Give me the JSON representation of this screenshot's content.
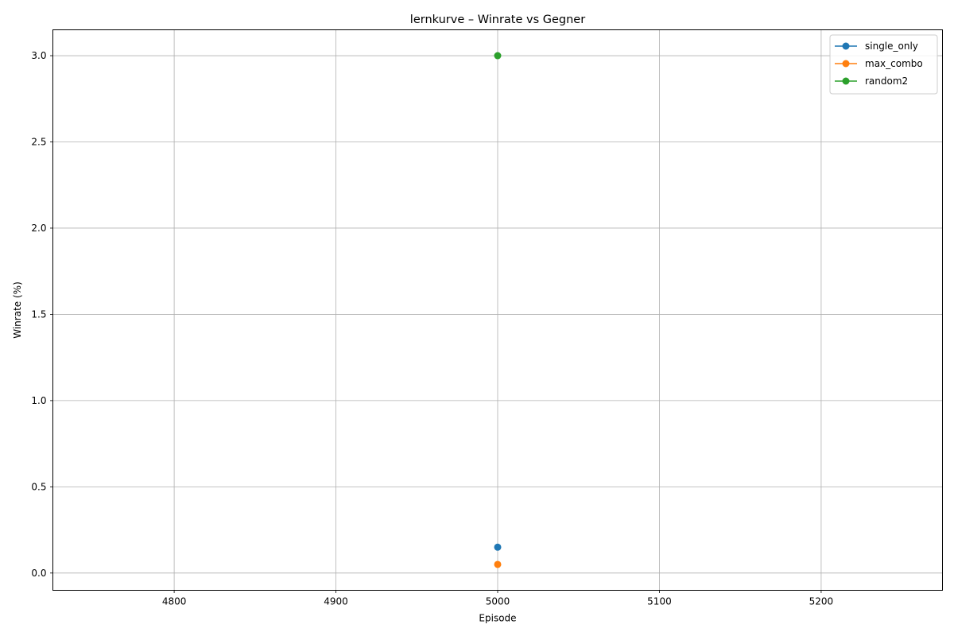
{
  "chart_data": {
    "type": "line",
    "title": "lernkurve – Winrate vs Gegner",
    "xlabel": "Episode",
    "ylabel": "Winrate (%)",
    "xlim": [
      4725,
      5275
    ],
    "ylim": [
      -0.1,
      3.15
    ],
    "x_ticks": [
      4800,
      4900,
      5000,
      5100,
      5200
    ],
    "y_ticks": [
      0.0,
      0.5,
      1.0,
      1.5,
      2.0,
      2.5,
      3.0
    ],
    "x_tick_labels": [
      "4800",
      "4900",
      "5000",
      "5100",
      "5200"
    ],
    "y_tick_labels": [
      "0.0",
      "0.5",
      "1.0",
      "1.5",
      "2.0",
      "2.5",
      "3.0"
    ],
    "grid": true,
    "legend_position": "top-right",
    "series": [
      {
        "name": "single_only",
        "color": "#1f77b4",
        "marker": "circle",
        "x": [
          5000
        ],
        "y": [
          0.15
        ]
      },
      {
        "name": "max_combo",
        "color": "#ff7f0e",
        "marker": "circle",
        "x": [
          5000
        ],
        "y": [
          0.05
        ]
      },
      {
        "name": "random2",
        "color": "#2ca02c",
        "marker": "circle",
        "x": [
          5000
        ],
        "y": [
          3.0
        ]
      }
    ]
  }
}
